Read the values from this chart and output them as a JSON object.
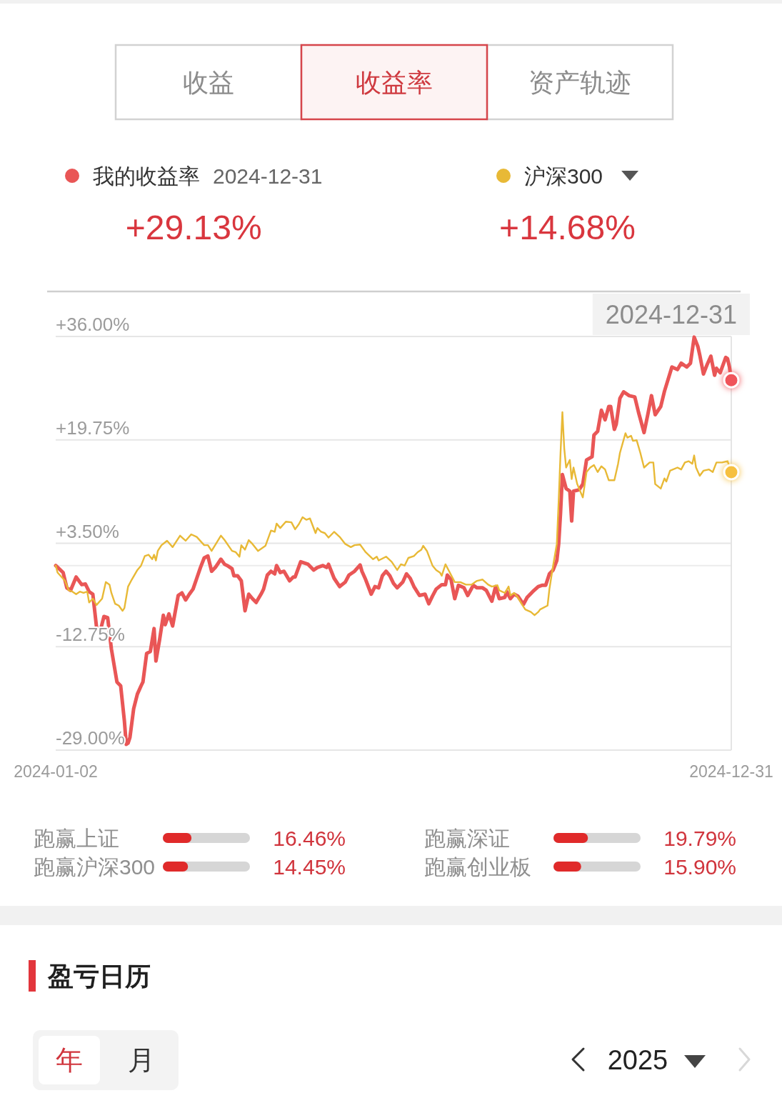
{
  "chart_data": [
    {
      "type": "other",
      "annotations": [
        "收益",
        "收益率",
        "资产轨迹"
      ]
    },
    {
      "type": "line",
      "legend": "top",
      "grid": "y",
      "xlim": [
        "2024-01-02",
        "2024-12-31"
      ],
      "xticks": [
        "2024-01-02",
        "2024-12-31"
      ],
      "ylim": [
        -29,
        36
      ],
      "yticks": [
        {
          "value": 36,
          "label": "+36.00%"
        },
        {
          "value": 19.75,
          "label": "+19.75%"
        },
        {
          "value": 3.5,
          "label": "+3.50%"
        },
        {
          "value": -12.75,
          "label": "-12.75%"
        },
        {
          "value": -29,
          "label": "-29.00%"
        }
      ],
      "ref_lines": [
        {
          "axis": "y",
          "value": 0,
          "color": "#ececec"
        },
        {
          "axis": "x",
          "value": "2024-12-31",
          "label": "2024-12-31",
          "color": "#e4e4e4"
        }
      ],
      "annotations": [
        "2024-12-31",
        "+29.13%",
        "+14.68%"
      ],
      "series": [
        {
          "name": "我的收益率",
          "color": "#e95656",
          "x": [
            "2024-01-02",
            "2024-01-06",
            "2024-01-08",
            "2024-01-10",
            "2024-01-13",
            "2024-01-16",
            "2024-01-18",
            "2024-01-20",
            "2024-01-22",
            "2024-01-24",
            "2024-01-26",
            "2024-01-28",
            "2024-01-30",
            "2024-02-01",
            "2024-02-04",
            "2024-02-06",
            "2024-02-08",
            "2024-02-09",
            "2024-02-10",
            "2024-02-11",
            "2024-02-13",
            "2024-02-15",
            "2024-02-17",
            "2024-02-18",
            "2024-02-20",
            "2024-02-22",
            "2024-02-24",
            "2024-02-25",
            "2024-02-27",
            "2024-02-29",
            "2024-03-01",
            "2024-03-03",
            "2024-03-05",
            "2024-03-08",
            "2024-03-10",
            "2024-03-12",
            "2024-03-14",
            "2024-03-16",
            "2024-03-18",
            "2024-03-20",
            "2024-03-22",
            "2024-03-24",
            "2024-03-26",
            "2024-03-28",
            "2024-03-31",
            "2024-04-02",
            "2024-04-04",
            "2024-04-06",
            "2024-04-07",
            "2024-04-09",
            "2024-04-11",
            "2024-04-13",
            "2024-04-15",
            "2024-04-17",
            "2024-04-19",
            "2024-04-22",
            "2024-04-23",
            "2024-04-25",
            "2024-04-27",
            "2024-04-29",
            "2024-04-30",
            "2024-05-02",
            "2024-05-04",
            "2024-05-07",
            "2024-05-09",
            "2024-05-10",
            "2024-05-13",
            "2024-05-15",
            "2024-05-17",
            "2024-05-20",
            "2024-05-22",
            "2024-05-25",
            "2024-05-27",
            "2024-05-28",
            "2024-05-31",
            "2024-06-03",
            "2024-06-06",
            "2024-06-08",
            "2024-06-11",
            "2024-06-14",
            "2024-06-15",
            "2024-06-17",
            "2024-06-20",
            "2024-06-22",
            "2024-06-24",
            "2024-06-26",
            "2024-06-28",
            "2024-06-30",
            "2024-07-02",
            "2024-07-04",
            "2024-07-07",
            "2024-07-09",
            "2024-07-11",
            "2024-07-13",
            "2024-07-16",
            "2024-07-19",
            "2024-07-21",
            "2024-07-23",
            "2024-07-25",
            "2024-07-28",
            "2024-07-30",
            "2024-07-31",
            "2024-08-02",
            "2024-08-04",
            "2024-08-06",
            "2024-08-09",
            "2024-08-11",
            "2024-08-14",
            "2024-08-16",
            "2024-08-19",
            "2024-08-21",
            "2024-08-24",
            "2024-08-26",
            "2024-08-28",
            "2024-08-31",
            "2024-09-01",
            "2024-09-03",
            "2024-09-05",
            "2024-09-07",
            "2024-09-10",
            "2024-09-12",
            "2024-09-15",
            "2024-09-18",
            "2024-09-20",
            "2024-09-22",
            "2024-09-24",
            "2024-09-26",
            "2024-09-28",
            "2024-09-29",
            "2024-09-30",
            "2024-10-01",
            "2024-10-03",
            "2024-10-05",
            "2024-10-06",
            "2024-10-07",
            "2024-10-10",
            "2024-10-12",
            "2024-10-14",
            "2024-10-17",
            "2024-10-18",
            "2024-10-20",
            "2024-10-22",
            "2024-10-24",
            "2024-10-26",
            "2024-10-27",
            "2024-10-29",
            "2024-10-30",
            "2024-11-01",
            "2024-11-03",
            "2024-11-06",
            "2024-11-09",
            "2024-11-11",
            "2024-11-14",
            "2024-11-16",
            "2024-11-18",
            "2024-11-20",
            "2024-11-23",
            "2024-11-25",
            "2024-11-29",
            "2024-12-02",
            "2024-12-04",
            "2024-12-07",
            "2024-12-09",
            "2024-12-11",
            "2024-12-13",
            "2024-12-14",
            "2024-12-16",
            "2024-12-18",
            "2024-12-20",
            "2024-12-22",
            "2024-12-23",
            "2024-12-25",
            "2024-12-28",
            "2024-12-29",
            "2024-12-30",
            "2024-12-31"
          ],
          "values": [
            0.0,
            -1.1,
            -3.5,
            -3.9,
            -1.8,
            -3.0,
            -2.9,
            -4.1,
            -4.5,
            -9.7,
            -10.3,
            -8.0,
            -8.2,
            -13.1,
            -18.3,
            -18.9,
            -24.4,
            -28.1,
            -27.9,
            -27.0,
            -22.5,
            -20.2,
            -18.9,
            -18.3,
            -13.8,
            -13.5,
            -9.9,
            -15.0,
            -11.6,
            -7.8,
            -9.3,
            -7.6,
            -9.5,
            -4.7,
            -4.3,
            -5.4,
            -4.5,
            -3.7,
            -2.0,
            -0.3,
            1.2,
            1.5,
            -0.9,
            -0.3,
            1.0,
            0.2,
            -0.1,
            -0.5,
            -1.6,
            -1.6,
            -2.4,
            -7.1,
            -4.5,
            -5.2,
            -5.8,
            -4.3,
            -3.7,
            -1.5,
            -0.9,
            -1.3,
            0.0,
            -1.1,
            -0.9,
            -2.4,
            -1.8,
            -1.8,
            0.6,
            0.4,
            0.2,
            -0.7,
            -0.3,
            0.0,
            -0.3,
            0.2,
            -2.0,
            -3.3,
            -2.6,
            -1.5,
            -0.9,
            0.1,
            -0.9,
            -2.2,
            -4.5,
            -3.3,
            -3.5,
            -1.6,
            -0.9,
            -1.6,
            -2.8,
            -3.5,
            -2.6,
            -1.3,
            -2.0,
            -3.3,
            -4.7,
            -4.5,
            -6.0,
            -4.8,
            -3.7,
            -3.0,
            -3.0,
            -1.5,
            -2.2,
            -5.2,
            -3.1,
            -3.5,
            -4.7,
            -3.1,
            -3.5,
            -3.5,
            -3.9,
            -5.6,
            -3.3,
            -5.2,
            -5.0,
            -4.1,
            -5.2,
            -4.5,
            -4.8,
            -6.1,
            -5.0,
            -4.1,
            -3.3,
            -3.1,
            -3.1,
            -1.3,
            -0.7,
            0.8,
            3.4,
            8.3,
            14.3,
            12.1,
            11.7,
            7.0,
            11.7,
            11.9,
            12.8,
            16.6,
            17.1,
            20.5,
            21.1,
            24.4,
            22.9,
            25.0,
            25.0,
            21.4,
            22.2,
            26.3,
            27.3,
            26.7,
            26.5,
            24.1,
            20.9,
            23.7,
            26.7,
            23.7,
            25.0,
            27.4,
            31.2,
            30.8,
            31.8,
            31.2,
            31.8,
            35.9,
            34.4,
            33.1,
            30.1,
            31.6,
            32.9,
            29.9,
            31.0,
            30.3,
            32.7,
            32.5,
            31.2,
            29.13
          ]
        },
        {
          "name": "沪深300",
          "color": "#e8b936",
          "x": [
            "2024-01-02",
            "2024-01-03",
            "2024-01-07",
            "2024-01-09",
            "2024-01-11",
            "2024-01-13",
            "2024-01-15",
            "2024-01-17",
            "2024-01-19",
            "2024-01-20",
            "2024-01-22",
            "2024-01-24",
            "2024-01-27",
            "2024-01-29",
            "2024-01-31",
            "2024-02-01",
            "2024-02-03",
            "2024-02-05",
            "2024-02-07",
            "2024-02-08",
            "2024-02-10",
            "2024-02-12",
            "2024-02-15",
            "2024-02-17",
            "2024-02-19",
            "2024-02-21",
            "2024-02-23",
            "2024-02-24",
            "2024-02-25",
            "2024-02-26",
            "2024-02-28",
            "2024-03-02",
            "2024-03-05",
            "2024-03-09",
            "2024-03-12",
            "2024-03-15",
            "2024-03-18",
            "2024-03-22",
            "2024-03-24",
            "2024-03-26",
            "2024-03-31",
            "2024-04-02",
            "2024-04-06",
            "2024-04-08",
            "2024-04-10",
            "2024-04-11",
            "2024-04-13",
            "2024-04-15",
            "2024-04-17",
            "2024-04-20",
            "2024-04-24",
            "2024-04-27",
            "2024-04-29",
            "2024-04-30",
            "2024-05-02",
            "2024-05-05",
            "2024-05-08",
            "2024-05-10",
            "2024-05-12",
            "2024-05-14",
            "2024-05-16",
            "2024-05-18",
            "2024-05-21",
            "2024-05-22",
            "2024-05-24",
            "2024-05-26",
            "2024-05-28",
            "2024-05-31",
            "2024-06-03",
            "2024-06-06",
            "2024-06-09",
            "2024-06-11",
            "2024-06-14",
            "2024-06-17",
            "2024-06-21",
            "2024-06-23",
            "2024-06-24",
            "2024-06-28",
            "2024-07-01",
            "2024-07-04",
            "2024-07-06",
            "2024-07-08",
            "2024-07-10",
            "2024-07-13",
            "2024-07-15",
            "2024-07-17",
            "2024-07-18",
            "2024-07-20",
            "2024-07-23",
            "2024-07-25",
            "2024-07-27",
            "2024-07-28",
            "2024-07-30",
            "2024-08-01",
            "2024-08-04",
            "2024-08-07",
            "2024-08-10",
            "2024-08-13",
            "2024-08-15",
            "2024-08-16",
            "2024-08-19",
            "2024-08-22",
            "2024-08-24",
            "2024-08-27",
            "2024-08-28",
            "2024-08-31",
            "2024-09-02",
            "2024-09-03",
            "2024-09-05",
            "2024-09-07",
            "2024-09-09",
            "2024-09-11",
            "2024-09-14",
            "2024-09-16",
            "2024-09-18",
            "2024-09-19",
            "2024-09-23",
            "2024-09-24",
            "2024-09-26",
            "2024-09-28",
            "2024-09-29",
            "2024-09-30",
            "2024-10-01",
            "2024-10-02",
            "2024-10-03",
            "2024-10-05",
            "2024-10-06",
            "2024-10-07",
            "2024-10-09",
            "2024-10-10",
            "2024-10-12",
            "2024-10-14",
            "2024-10-16",
            "2024-10-18",
            "2024-10-20",
            "2024-10-22",
            "2024-10-24",
            "2024-10-26",
            "2024-10-29",
            "2024-10-31",
            "2024-11-01",
            "2024-11-04",
            "2024-11-05",
            "2024-11-07",
            "2024-11-08",
            "2024-11-10",
            "2024-11-12",
            "2024-11-14",
            "2024-11-17",
            "2024-11-19",
            "2024-11-20",
            "2024-11-23",
            "2024-11-25",
            "2024-11-26",
            "2024-11-28",
            "2024-12-02",
            "2024-12-04",
            "2024-12-06",
            "2024-12-08",
            "2024-12-10",
            "2024-12-11",
            "2024-12-12",
            "2024-12-14",
            "2024-12-16",
            "2024-12-19",
            "2024-12-21",
            "2024-12-23",
            "2024-12-26",
            "2024-12-29",
            "2024-12-31"
          ],
          "values": [
            0.0,
            -1.1,
            -2.4,
            -3.9,
            -4.1,
            -4.5,
            -4.1,
            -4.3,
            -4.1,
            -5.8,
            -5.2,
            -6.2,
            -5.2,
            -2.6,
            -3.0,
            -4.3,
            -6.0,
            -6.3,
            -7.1,
            -6.7,
            -3.3,
            -2.2,
            -0.7,
            0.0,
            1.5,
            1.7,
            1.0,
            1.7,
            0.8,
            2.3,
            3.2,
            3.9,
            2.9,
            4.7,
            3.9,
            4.9,
            4.5,
            3.2,
            3.2,
            2.3,
            4.7,
            4.0,
            2.3,
            2.1,
            1.4,
            3.2,
            2.5,
            4.0,
            3.4,
            2.3,
            3.1,
            5.5,
            5.3,
            6.6,
            5.9,
            6.9,
            6.8,
            5.7,
            6.5,
            7.6,
            7.2,
            7.4,
            5.1,
            5.9,
            5.3,
            5.1,
            4.4,
            5.3,
            4.5,
            3.4,
            2.9,
            3.2,
            3.3,
            2.1,
            1.0,
            1.4,
            0.8,
            1.4,
            0.6,
            -0.7,
            0.2,
            0.0,
            1.2,
            1.5,
            2.1,
            2.5,
            3.1,
            2.3,
            0.0,
            -0.7,
            -1.1,
            -1.6,
            0.2,
            -0.9,
            -2.6,
            -2.6,
            -3.0,
            -3.0,
            -2.6,
            -2.4,
            -2.2,
            -3.0,
            -3.3,
            -3.1,
            -3.9,
            -4.3,
            -3.3,
            -4.7,
            -4.3,
            -5.0,
            -6.0,
            -6.9,
            -7.3,
            -7.8,
            -7.3,
            -6.9,
            -6.3,
            -3.7,
            0.0,
            3.4,
            10.2,
            17.7,
            24.1,
            18.4,
            15.4,
            16.6,
            13.6,
            15.4,
            12.8,
            12.1,
            10.7,
            14.7,
            15.4,
            15.8,
            14.7,
            15.6,
            15.1,
            13.4,
            13.4,
            16.0,
            17.7,
            20.8,
            20.1,
            20.4,
            19.6,
            19.7,
            17.7,
            15.4,
            16.2,
            16.2,
            12.8,
            12.1,
            13.7,
            13.2,
            14.9,
            15.4,
            15.1,
            16.2,
            16.4,
            16.0,
            17.3,
            15.4,
            14.1,
            14.9,
            15.1,
            14.7,
            16.2,
            16.2,
            16.4,
            14.68
          ]
        },
        {
          "type": "scatter",
          "color": "#f0545a",
          "x": [
            "2024-12-31"
          ],
          "values": [
            29.13
          ]
        },
        {
          "type": "scatter",
          "color": "#f6c040",
          "x": [
            "2024-12-31"
          ],
          "values": [
            14.68
          ]
        }
      ]
    },
    {
      "type": "bar",
      "orientation": "horizontal",
      "categories": [
        "跑赢上证",
        "跑赢沪深300"
      ],
      "values": [
        16.46,
        14.45
      ],
      "value_labels": [
        "16.46%",
        "14.45%"
      ],
      "color": "#e02a2a",
      "xlim": [
        0,
        50
      ]
    },
    {
      "type": "bar",
      "orientation": "horizontal",
      "categories": [
        "跑赢深证",
        "跑赢创业板"
      ],
      "values": [
        19.79,
        15.9
      ],
      "value_labels": [
        "19.79%",
        "15.90%"
      ],
      "color": "#e02a2a",
      "xlim": [
        0,
        50
      ]
    },
    {
      "type": "other",
      "title": "盈亏日历",
      "annotations": [
        "年",
        "月",
        "2025"
      ]
    }
  ]
}
